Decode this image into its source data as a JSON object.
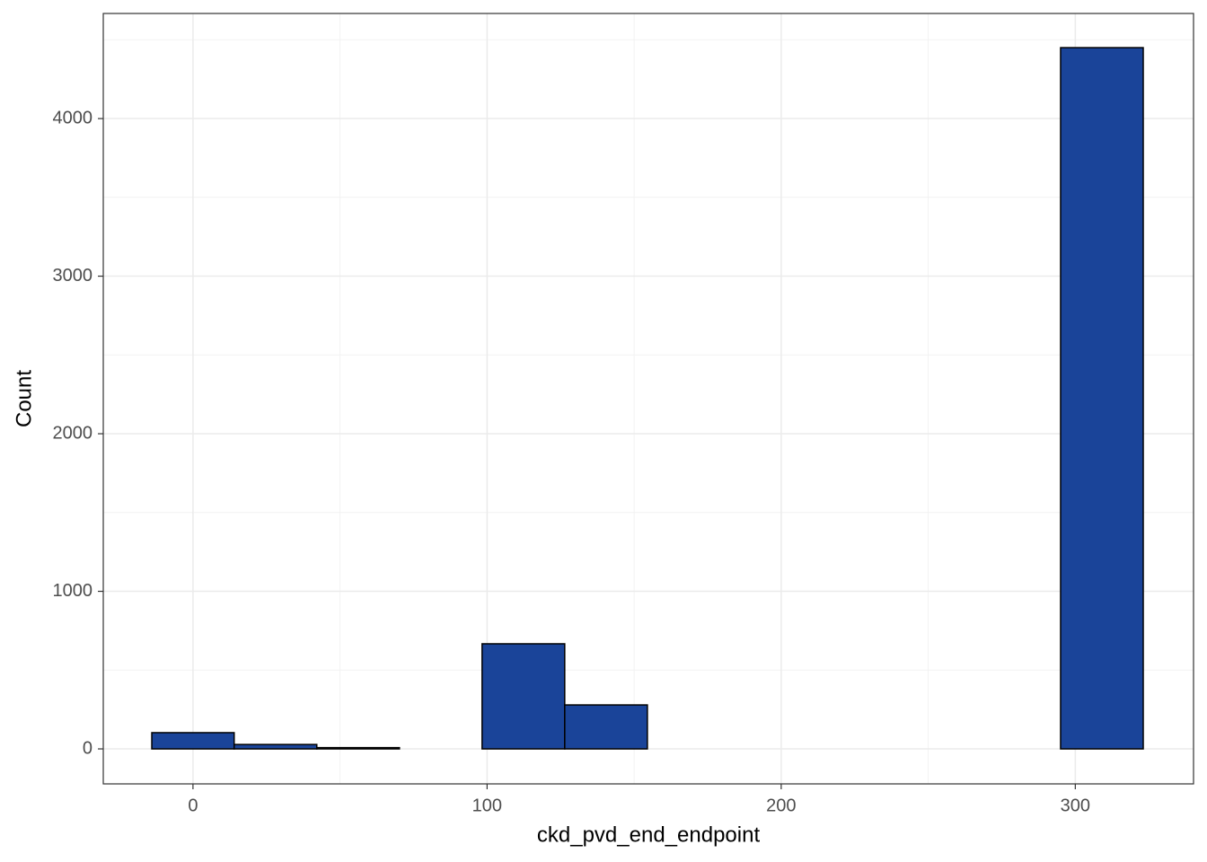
{
  "chart_data": {
    "type": "histogram",
    "x_label": "ckd_pvd_end_endpoint",
    "y_label": "Count",
    "bins": [
      -14,
      14,
      42.1,
      70.2,
      98.3,
      126.4,
      154.5,
      182.6,
      210.7,
      238.8,
      266.9,
      295,
      323.1
    ],
    "values": [
      103,
      28,
      8,
      0,
      667,
      279,
      0,
      0,
      0,
      0,
      0,
      4450
    ],
    "color": "#1a4499",
    "xlim": [
      -30.5,
      340.2
    ],
    "xticks": [
      0,
      100,
      200,
      300
    ],
    "ylim": [
      -222,
      4667
    ],
    "yticks": [
      0,
      1000,
      2000,
      3000,
      4000
    ],
    "grid": true
  }
}
